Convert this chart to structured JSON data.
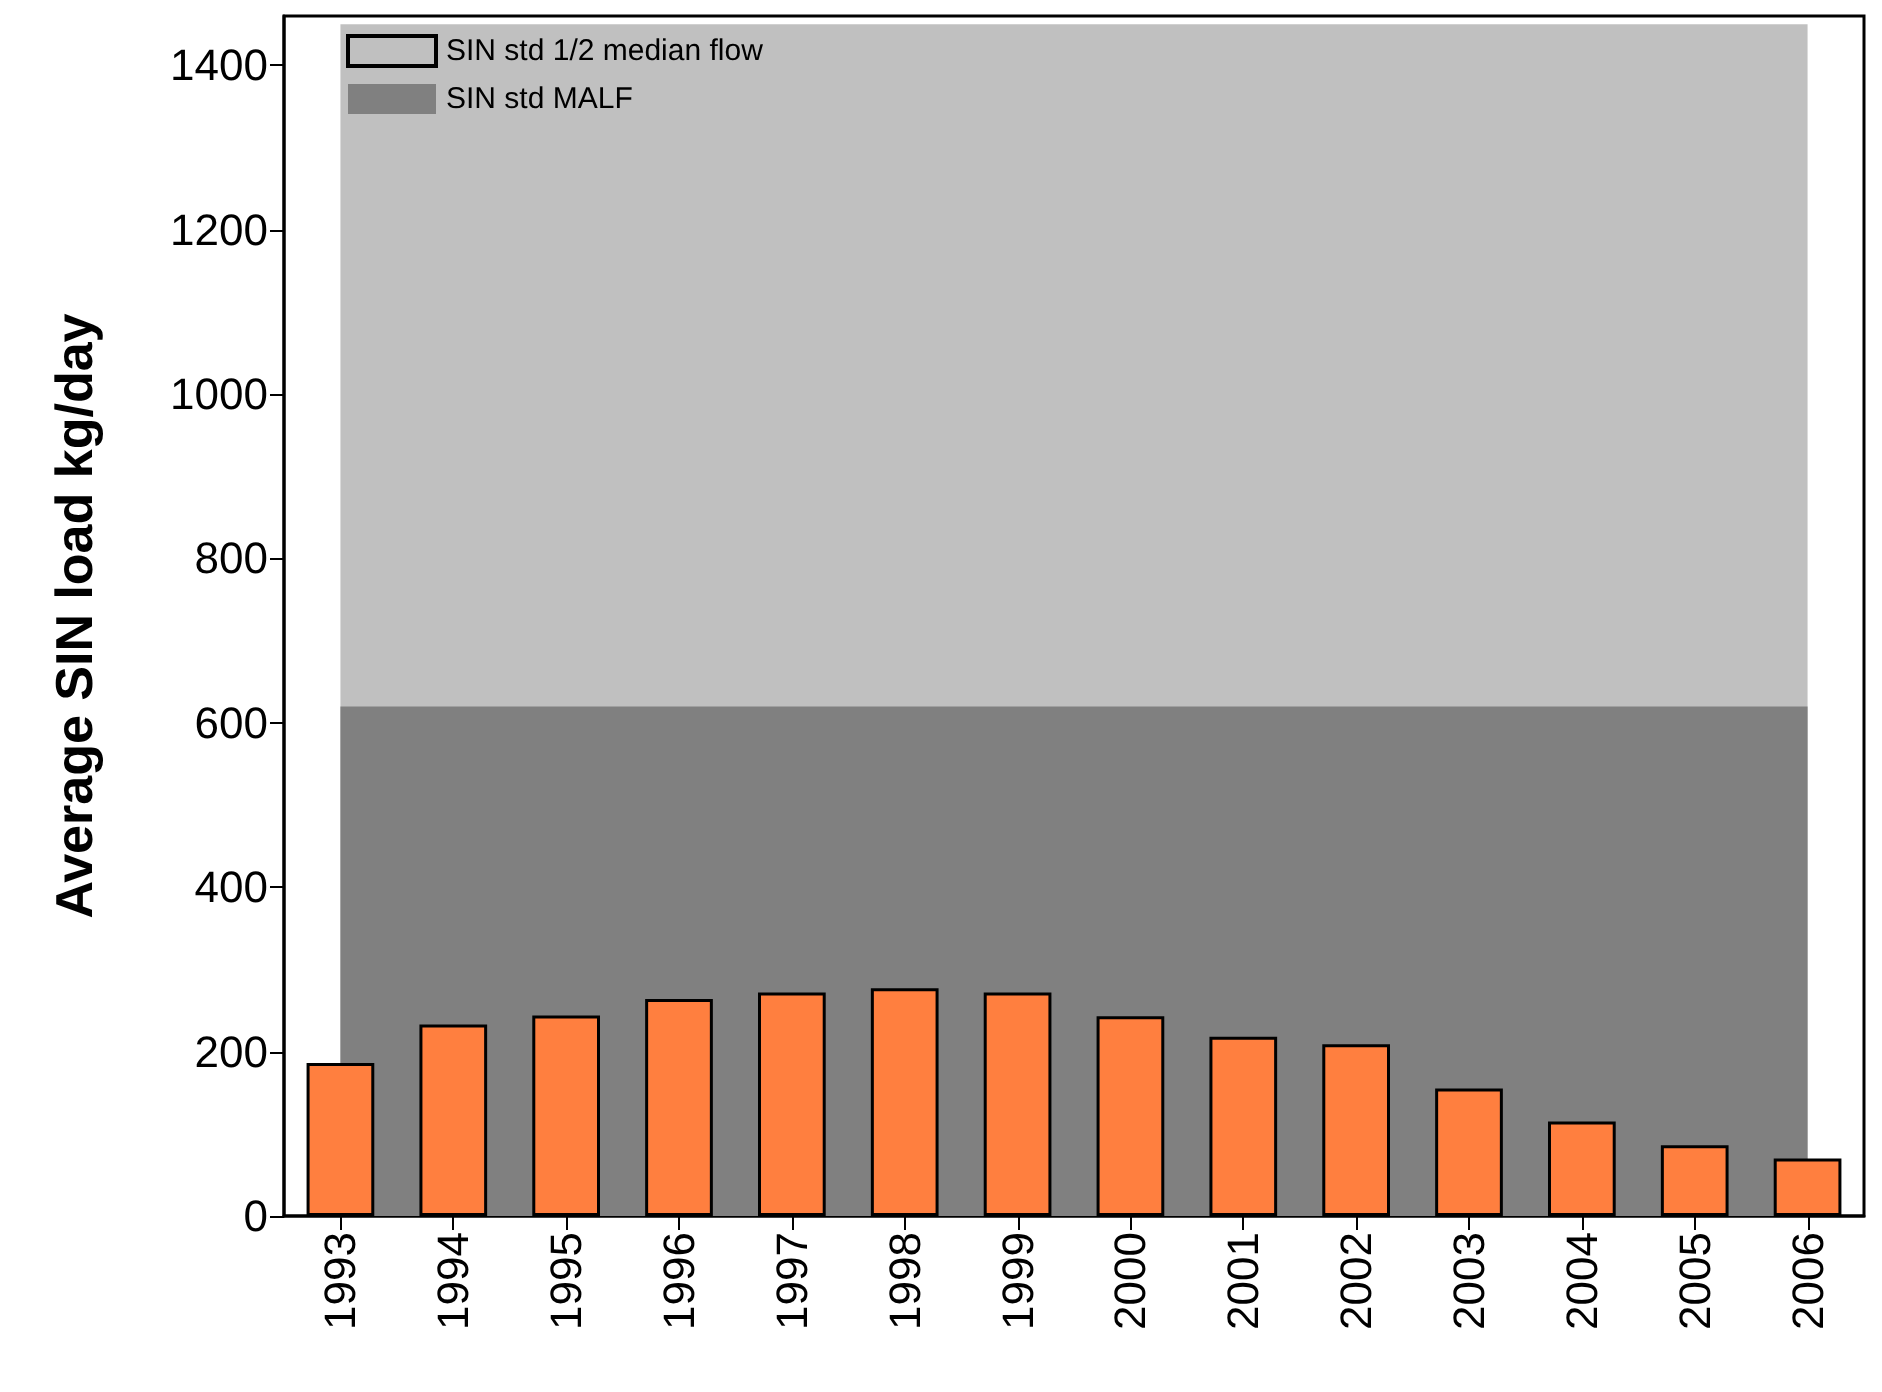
{
  "chart_data": {
    "type": "bar",
    "ylabel": "Average SIN load kg/day",
    "categories": [
      "1993",
      "1994",
      "1995",
      "1996",
      "1997",
      "1998",
      "1999",
      "2000",
      "2001",
      "2002",
      "2003",
      "2004",
      "2005",
      "2006"
    ],
    "values": [
      186,
      233,
      244,
      264,
      272,
      277,
      272,
      243,
      218,
      209,
      155,
      115,
      86,
      70
    ],
    "color": "#ff7f3f",
    "ylim": [
      0,
      1460
    ],
    "yticks": [
      0,
      200,
      400,
      600,
      800,
      1000,
      1200,
      1400
    ],
    "bands": [
      {
        "axis": "y",
        "from": 0,
        "to": 1450,
        "label": "SIN std 1/2 median flow",
        "color": "#c0c0c0"
      },
      {
        "axis": "y",
        "from": 0,
        "to": 620,
        "label": "SIN std MALF",
        "color": "#808080"
      }
    ],
    "legend": "top left",
    "grid": false
  }
}
